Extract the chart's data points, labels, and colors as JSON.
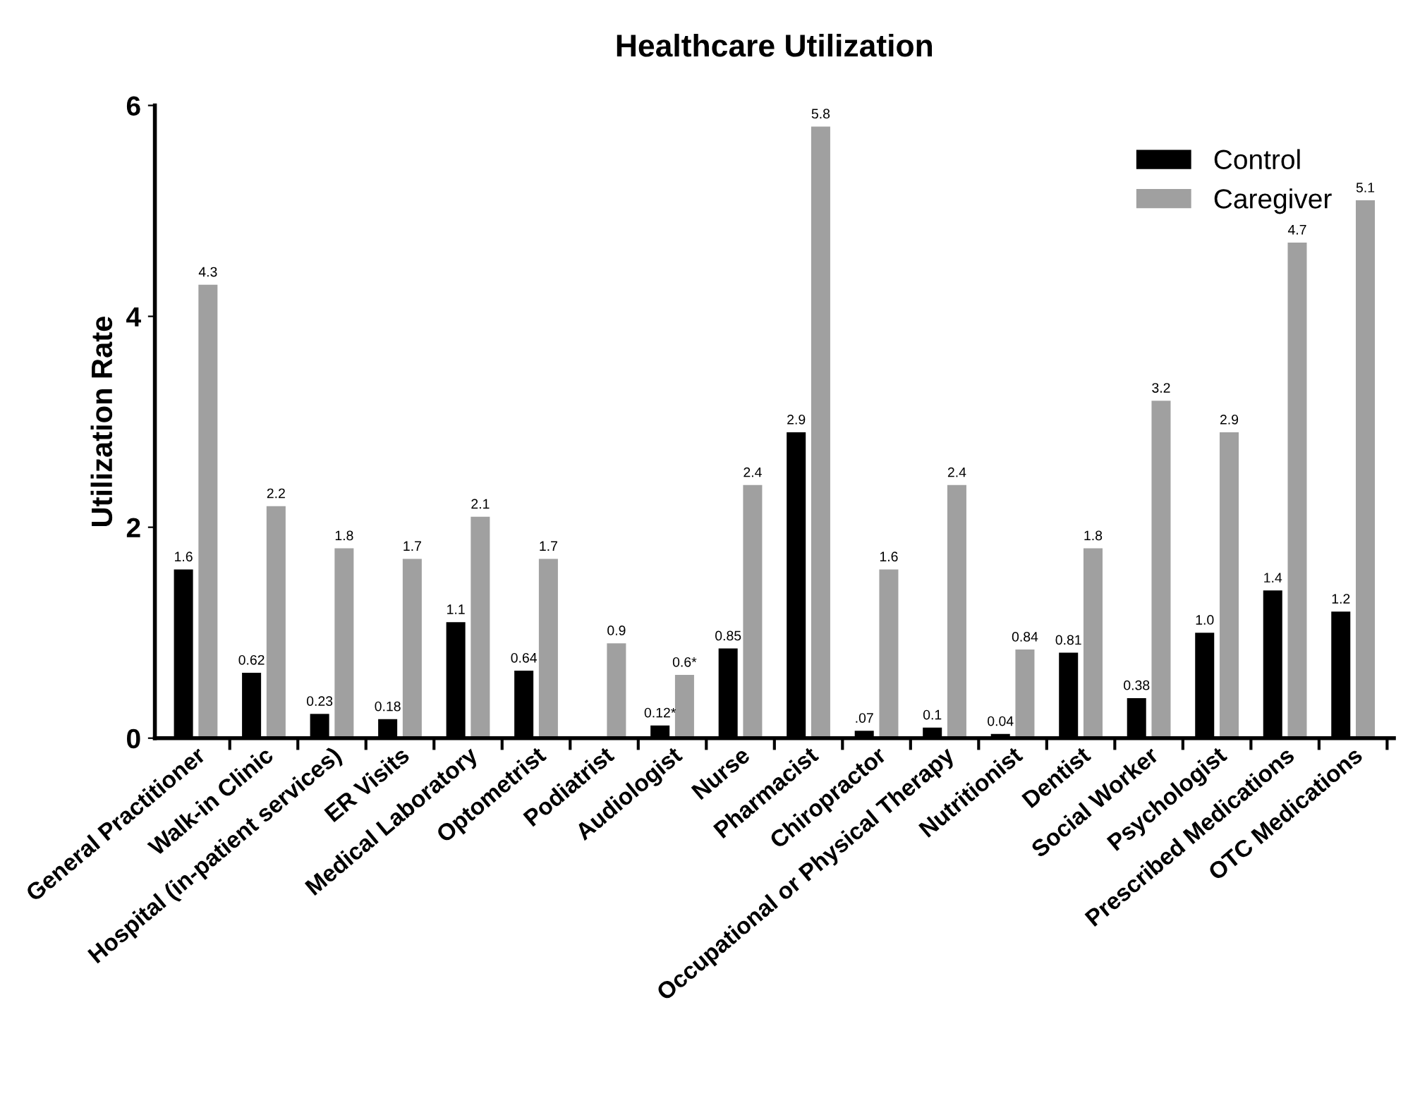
{
  "chart_data": {
    "type": "bar",
    "title": "Healthcare Utilization",
    "ylabel": "Utilization Rate",
    "categories": [
      "General Practitioner",
      "Walk-in Clinic",
      "Hospital (in-patient services)",
      "ER Visits",
      "Medical Laboratory",
      "Optometrist",
      "Podiatrist",
      "Audiologist",
      "Nurse",
      "Pharmacist",
      "Chiropractor",
      "Occupational or Physical Therapy",
      "Nutritionist",
      "Dentist",
      "Social Worker",
      "Psychologist",
      "Prescribed Medications",
      "OTC Medications"
    ],
    "series": [
      {
        "name": "Control",
        "color": "#000000",
        "values": [
          1.6,
          0.62,
          0.23,
          0.18,
          1.1,
          0.64,
          null,
          0.12,
          0.85,
          2.9,
          0.07,
          0.1,
          0.04,
          0.81,
          0.38,
          1.0,
          1.4,
          1.2
        ],
        "value_labels": [
          "1.6",
          "0.62",
          "0.23",
          "0.18",
          "1.1",
          "0.64",
          null,
          "0.12*",
          "0.85",
          "2.9",
          ".07",
          "0.1",
          "0.04",
          "0.81",
          "0.38",
          "1.0",
          "1.4",
          "1.2"
        ]
      },
      {
        "name": "Caregiver",
        "color": "#a0a0a0",
        "values": [
          4.3,
          2.2,
          1.8,
          1.7,
          2.1,
          1.7,
          0.9,
          0.6,
          2.4,
          5.8,
          1.6,
          2.4,
          0.84,
          1.8,
          3.2,
          2.9,
          4.7,
          5.1
        ],
        "value_labels": [
          "4.3",
          "2.2",
          "1.8",
          "1.7",
          "2.1",
          "1.7",
          "0.9",
          "0.6*",
          "2.4",
          "5.8",
          "1.6",
          "2.4",
          "0.84",
          "1.8",
          "3.2",
          "2.9",
          "4.7",
          "5.1"
        ]
      }
    ],
    "ylim": [
      0,
      6
    ],
    "yticks": [
      0,
      2,
      4,
      6
    ],
    "grid": false,
    "legend": "top right"
  }
}
